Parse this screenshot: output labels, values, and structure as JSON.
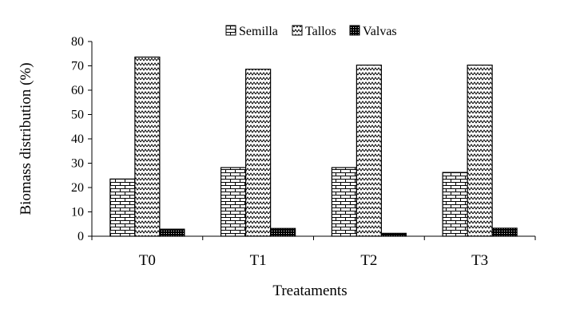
{
  "chart_data": {
    "type": "bar",
    "xlabel": "Treataments",
    "ylabel": "Biomass distribution (%)",
    "ylim": [
      0,
      80
    ],
    "yticks": [
      0,
      10,
      20,
      30,
      40,
      50,
      60,
      70,
      80
    ],
    "categories": [
      "T0",
      "T1",
      "T2",
      "T3"
    ],
    "series": [
      {
        "name": "Semilla",
        "pattern": "brick",
        "values": [
          23.5,
          28.2,
          28.2,
          26.2
        ]
      },
      {
        "name": "Tallos",
        "pattern": "zigzag",
        "values": [
          73.6,
          68.6,
          70.3,
          70.3
        ]
      },
      {
        "name": "Valvas",
        "pattern": "dense-dots",
        "values": [
          2.9,
          3.2,
          1.2,
          3.3
        ]
      }
    ],
    "legend_position": "top",
    "grid": false
  }
}
